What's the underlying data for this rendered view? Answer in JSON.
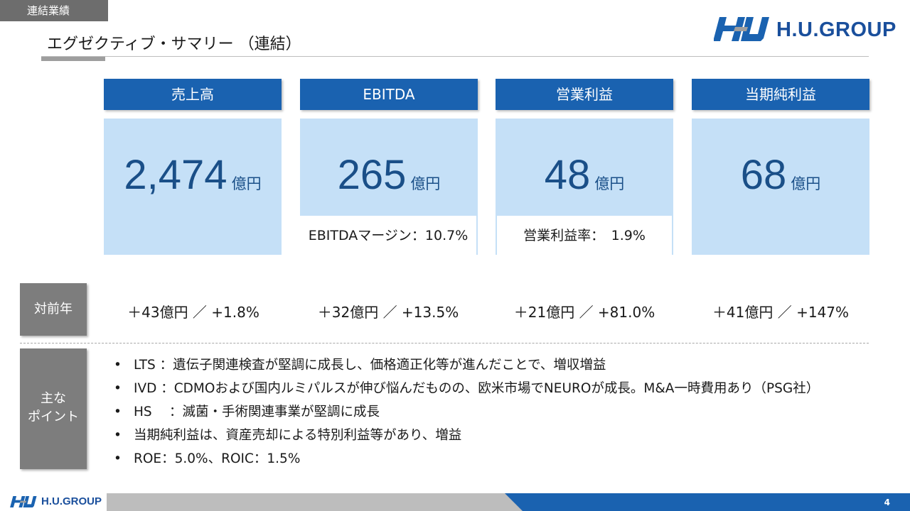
{
  "header": {
    "section_tag": "連結業績",
    "title": "エグゼクティブ・サマリー （連結）",
    "logo_text": "H.U.GROUP"
  },
  "kpis": [
    {
      "label": "売上高",
      "value": "2,474",
      "unit": "億円",
      "sub": ""
    },
    {
      "label": "EBITDA",
      "value": "265",
      "unit": "億円",
      "sub": "EBITDAマージン：10.7%"
    },
    {
      "label": "営業利益",
      "value": "48",
      "unit": "億円",
      "sub": "営業利益率：　1.9%"
    },
    {
      "label": "当期純利益",
      "value": "68",
      "unit": "億円",
      "sub": ""
    }
  ],
  "yoy": {
    "label": "対前年",
    "values": [
      "＋43億円 ／ +1.8%",
      "＋32億円 ／ +13.5%",
      "＋21億円 ／ +81.0%",
      "＋41億円 ／ +147%"
    ]
  },
  "points": {
    "label_line1": "主な",
    "label_line2": "ポイント",
    "items": [
      "LTS ：遺伝子関連検査が堅調に成長し、価格適正化等が進んだことで、増収増益",
      "IVD ：CDMOおよび国内ルミパルスが伸び悩んだものの、欧米市場でNEUROが成長。M&A一時費用あり（PSG社）",
      "HS 　：滅菌・手術関連事業が堅調に成長",
      "当期純利益は、資産売却による特別利益等があり、増益",
      "ROE：5.0%、ROIC：1.5%"
    ]
  },
  "footer": {
    "logo_text": "H.U.GROUP",
    "page_number": "4"
  },
  "colors": {
    "brand_blue": "#1a62b0",
    "panel_blue": "#c5e0f7",
    "value_blue": "#1a4f88",
    "label_gray": "#7d7d7d"
  }
}
